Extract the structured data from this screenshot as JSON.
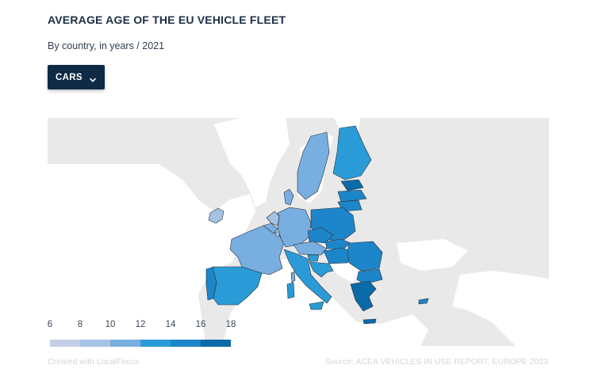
{
  "header": {
    "title": "AVERAGE AGE OF THE EU VEHICLE FLEET",
    "subtitle": "By country, in years / 2021"
  },
  "dropdown": {
    "label": "CARS",
    "icon": "chevron-down-icon"
  },
  "legend": {
    "ticks": [
      "6",
      "8",
      "10",
      "12",
      "14",
      "16",
      "18"
    ],
    "colors": [
      "#c3cfe6",
      "#a6c3e6",
      "#78aee0",
      "#2a9bd6",
      "#1d85c9",
      "#0b6aa8"
    ]
  },
  "colors": {
    "land": "#e8e8e8",
    "sea": "#ffffff",
    "border": "#2b2f36",
    "brand_dark": "#0e2a45"
  },
  "footer": {
    "credit": "Created with LocalFocus",
    "source": "Source: ACEA VEHICLES IN USE REPORT, EUROPE 2023"
  }
}
